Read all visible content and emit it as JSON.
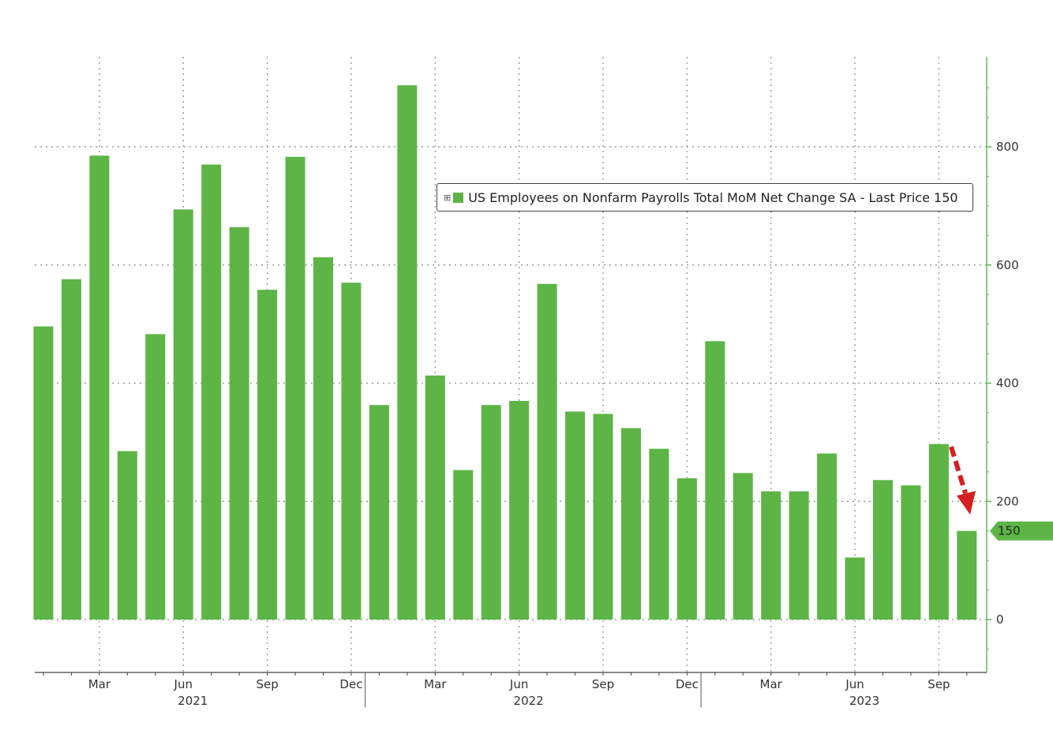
{
  "chart_data": {
    "type": "bar",
    "legend": "US Employees on Nonfarm Payrolls Total MoM Net Change SA - Last Price 150",
    "last_price": 150,
    "bar_color": "#5cb545",
    "arrow_color": "#d42020",
    "ylim": [
      -90,
      950
    ],
    "yticks": [
      0,
      200,
      400,
      600,
      800
    ],
    "grid": true,
    "legend_placement": "upper-center",
    "x_labels": [
      {
        "month": "Mar",
        "year": ""
      },
      {
        "month": "Jun",
        "year": "2021"
      },
      {
        "month": "Sep",
        "year": ""
      },
      {
        "month": "Dec",
        "year": ""
      },
      {
        "month": "Mar",
        "year": ""
      },
      {
        "month": "Jun",
        "year": "2022"
      },
      {
        "month": "Sep",
        "year": ""
      },
      {
        "month": "Dec",
        "year": ""
      },
      {
        "month": "Mar",
        "year": ""
      },
      {
        "month": "Jun",
        "year": "2023"
      },
      {
        "month": "Sep",
        "year": ""
      }
    ],
    "categories": [
      "2021-01",
      "2021-02",
      "2021-03",
      "2021-04",
      "2021-05",
      "2021-06",
      "2021-07",
      "2021-08",
      "2021-09",
      "2021-10",
      "2021-11",
      "2021-12",
      "2022-01",
      "2022-02",
      "2022-03",
      "2022-04",
      "2022-05",
      "2022-06",
      "2022-07",
      "2022-08",
      "2022-09",
      "2022-10",
      "2022-11",
      "2022-12",
      "2023-01",
      "2023-02",
      "2023-03",
      "2023-04",
      "2023-05",
      "2023-06",
      "2023-07",
      "2023-08",
      "2023-09",
      "2023-10"
    ],
    "values": [
      496,
      576,
      785,
      285,
      483,
      694,
      770,
      664,
      558,
      783,
      613,
      570,
      363,
      904,
      413,
      253,
      363,
      370,
      568,
      352,
      348,
      324,
      289,
      239,
      471,
      248,
      217,
      217,
      281,
      105,
      236,
      227,
      297,
      150
    ]
  }
}
